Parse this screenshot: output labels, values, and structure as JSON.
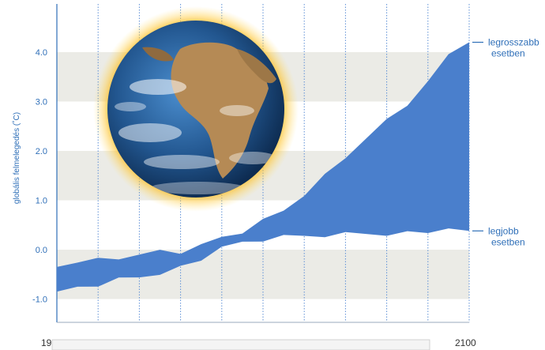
{
  "chart_data": {
    "type": "area",
    "title": "",
    "ylabel": "globális felmelegedés (˚C)",
    "xlabel": "",
    "ylim": [
      -1.5,
      5.0
    ],
    "yticks": [
      {
        "value": 4.0,
        "label": "4.0"
      },
      {
        "value": 3.0,
        "label": "3.0"
      },
      {
        "value": 2.0,
        "label": "2.0"
      },
      {
        "value": 1.0,
        "label": "1.0"
      },
      {
        "value": 0.0,
        "label": "0.0"
      },
      {
        "value": -1.0,
        "label": "-1.0"
      }
    ],
    "x_start_label": "19",
    "x_end_label": "2100",
    "xlim": [
      1900,
      2100
    ],
    "grid": true,
    "series": [
      {
        "name": "legrosszabb esetben",
        "x": [
          1900,
          1910,
          1920,
          1930,
          1940,
          1950,
          1960,
          1970,
          1980,
          1990,
          2000,
          2010,
          2020,
          2030,
          2040,
          2050,
          2060,
          2070,
          2080,
          2090,
          2100
        ],
        "values": [
          -0.35,
          -0.25,
          -0.2,
          -0.15,
          -0.1,
          -0.05,
          -0.05,
          0.1,
          0.2,
          0.35,
          0.6,
          0.85,
          1.1,
          1.5,
          1.9,
          2.25,
          2.6,
          2.95,
          3.4,
          3.9,
          4.2
        ]
      },
      {
        "name": "legjobb esetben",
        "x": [
          1900,
          1910,
          1920,
          1930,
          1940,
          1950,
          1960,
          1970,
          1980,
          1990,
          2000,
          2010,
          2020,
          2030,
          2040,
          2050,
          2060,
          2070,
          2080,
          2090,
          2100
        ],
        "values": [
          -0.85,
          -0.75,
          -0.7,
          -0.6,
          -0.55,
          -0.45,
          -0.35,
          -0.2,
          0.0,
          0.15,
          0.2,
          0.25,
          0.28,
          0.3,
          0.32,
          0.33,
          0.34,
          0.35,
          0.36,
          0.37,
          0.38
        ]
      }
    ],
    "annotations": [
      {
        "series": "legrosszabb esetben",
        "lines": [
          "legrosszabb",
          "esetben"
        ]
      },
      {
        "series": "legjobb esetben",
        "lines": [
          "legjobb",
          "esetben"
        ]
      }
    ],
    "colors": {
      "fill": "#4a7fcc",
      "text": "#2f6fb8",
      "band": "#ebebe6",
      "grid": "#5d8fd6"
    },
    "image": "earth-globe-with-glowing-halo"
  }
}
